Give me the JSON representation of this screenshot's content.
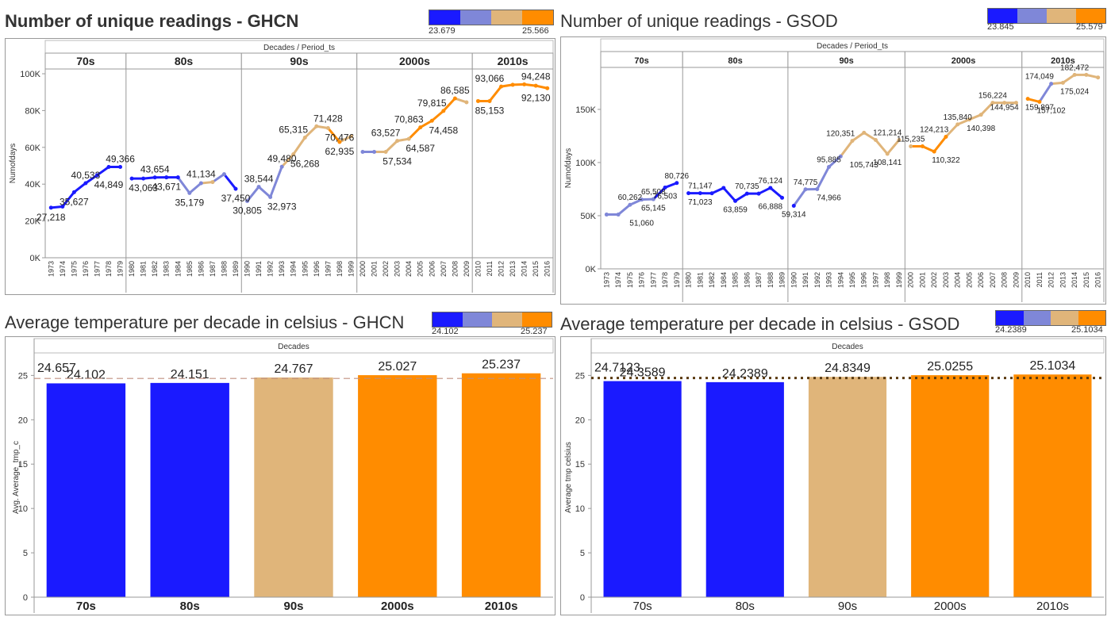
{
  "colors": {
    "blue": "#1a1aff",
    "blue_light": "#7f87d8",
    "tan": "#e0b57a",
    "orange": "#ff8c00"
  },
  "panels": {
    "ghcn_line": {
      "title": "Number of unique readings - GHCN",
      "legend_min": "23.679",
      "legend_max": "25.566",
      "header": "Decades  /  Period_ts",
      "ylabel": "Numofdays"
    },
    "gsod_line": {
      "title": "Number of unique readings - GSOD",
      "legend_min": "23.845",
      "legend_max": "25.579",
      "header": "Decades  /  Period_ts",
      "ylabel": "Numofdays"
    },
    "ghcn_bar": {
      "title": "Average temperature per decade in celsius - GHCN",
      "legend_min": "24.102",
      "legend_max": "25.237",
      "header": "Decades",
      "ylabel": "Avg. Average_tmp_c"
    },
    "gsod_bar": {
      "title": "Average temperature per decade in celsius - GSOD",
      "legend_min": "24.2389",
      "legend_max": "25.1034",
      "header": "Decades",
      "ylabel": "Average tmp celsius"
    }
  },
  "chart_data": [
    {
      "id": "ghcn_line",
      "type": "line",
      "ylim": [
        0,
        100000
      ],
      "yticks": [
        0,
        20000,
        40000,
        60000,
        80000,
        100000
      ],
      "ytick_labels": [
        "0K",
        "20K",
        "40K",
        "60K",
        "80K",
        "100K"
      ],
      "decades": [
        {
          "label": "70s",
          "years": [
            "1973",
            "1974",
            "1975",
            "1976",
            "1977",
            "1978",
            "1979"
          ],
          "values": [
            27218,
            27800,
            35627,
            40533,
            44849,
            49366,
            49366
          ],
          "colors": [
            "blue",
            "blue",
            "blue",
            "blue",
            "blue",
            "blue",
            "blue"
          ]
        },
        {
          "label": "80s",
          "years": [
            "1980",
            "1981",
            "1982",
            "1983",
            "1984",
            "1985",
            "1986",
            "1987",
            "1988",
            "1989"
          ],
          "values": [
            43063,
            43063,
            43654,
            43671,
            43671,
            35179,
            40500,
            41134,
            45400,
            37450
          ],
          "colors": [
            "blue",
            "blue",
            "blue",
            "blue",
            "blue",
            "blue_light",
            "blue_light",
            "tan",
            "blue_light",
            "blue"
          ]
        },
        {
          "label": "90s",
          "years": [
            "1990",
            "1991",
            "1992",
            "1993",
            "1994",
            "1995",
            "1996",
            "1997",
            "1998",
            "1999"
          ],
          "values": [
            30805,
            38544,
            32973,
            49480,
            56268,
            65315,
            71428,
            70476,
            62935,
            66000
          ],
          "colors": [
            "blue_light",
            "blue_light",
            "blue_light",
            "blue_light",
            "tan",
            "tan",
            "tan",
            "tan",
            "orange",
            "tan"
          ]
        },
        {
          "label": "2000s",
          "years": [
            "2000",
            "2001",
            "2002",
            "2003",
            "2004",
            "2005",
            "2006",
            "2007",
            "2008",
            "2009"
          ],
          "values": [
            57534,
            57534,
            57534,
            63527,
            64587,
            70863,
            74458,
            79815,
            86585,
            84500
          ],
          "colors": [
            "blue_light",
            "blue_light",
            "tan",
            "tan",
            "tan",
            "orange",
            "orange",
            "orange",
            "orange",
            "tan"
          ]
        },
        {
          "label": "2010s",
          "years": [
            "2010",
            "2011",
            "2012",
            "2013",
            "2014",
            "2015",
            "2016"
          ],
          "values": [
            85153,
            85153,
            93066,
            94000,
            94248,
            93500,
            92130
          ],
          "colors": [
            "orange",
            "orange",
            "orange",
            "orange",
            "orange",
            "orange",
            "orange"
          ]
        }
      ],
      "labels": [
        {
          "year": "1973",
          "text": "27,218",
          "pos": "below"
        },
        {
          "year": "1975",
          "text": "35,627",
          "pos": "below"
        },
        {
          "year": "1976",
          "text": "40,533",
          "pos": "above"
        },
        {
          "year": "1978",
          "text": "44,849",
          "pos": "below"
        },
        {
          "year": "1979",
          "text": "49,366",
          "pos": "above"
        },
        {
          "year": "1981",
          "text": "43,063",
          "pos": "below"
        },
        {
          "year": "1982",
          "text": "43,654",
          "pos": "above"
        },
        {
          "year": "1983",
          "text": "43,671",
          "pos": "below"
        },
        {
          "year": "1985",
          "text": "35,179",
          "pos": "below"
        },
        {
          "year": "1986",
          "text": "41,134",
          "pos": "above"
        },
        {
          "year": "1989",
          "text": "37,450",
          "pos": "below"
        },
        {
          "year": "1990",
          "text": "30,805",
          "pos": "below"
        },
        {
          "year": "1991",
          "text": "38,544",
          "pos": "above"
        },
        {
          "year": "1993",
          "text": "32,973",
          "pos": "below"
        },
        {
          "year": "1993",
          "text": "49,480",
          "pos": "above"
        },
        {
          "year": "1994",
          "text": "65,315",
          "pos": "above"
        },
        {
          "year": "1995",
          "text": "56,268",
          "pos": "below"
        },
        {
          "year": "1997",
          "text": "71,428",
          "pos": "above"
        },
        {
          "year": "1998",
          "text": "70,476",
          "pos": "below"
        },
        {
          "year": "1998",
          "text": "62,935",
          "pos": "below"
        },
        {
          "year": "2002",
          "text": "63,527",
          "pos": "above"
        },
        {
          "year": "2003",
          "text": "57,534",
          "pos": "below"
        },
        {
          "year": "2004",
          "text": "70,863",
          "pos": "above"
        },
        {
          "year": "2005",
          "text": "64,587",
          "pos": "below"
        },
        {
          "year": "2006",
          "text": "79,815",
          "pos": "above"
        },
        {
          "year": "2007",
          "text": "74,458",
          "pos": "below"
        },
        {
          "year": "2008",
          "text": "86,585",
          "pos": "above"
        },
        {
          "year": "2011",
          "text": "93,066",
          "pos": "above"
        },
        {
          "year": "2011",
          "text": "85,153",
          "pos": "below"
        },
        {
          "year": "2015",
          "text": "94,248",
          "pos": "above"
        },
        {
          "year": "2015",
          "text": "92,130",
          "pos": "below"
        }
      ]
    },
    {
      "id": "gsod_line",
      "type": "line",
      "ylim": [
        0,
        185000
      ],
      "yticks": [
        0,
        50000,
        100000,
        150000
      ],
      "ytick_labels": [
        "0K",
        "50K",
        "100K",
        "150K"
      ],
      "decades": [
        {
          "label": "70s",
          "years": [
            "1973",
            "1974",
            "1975",
            "1976",
            "1977",
            "1978",
            "1979"
          ],
          "values": [
            51060,
            51060,
            60262,
            65145,
            65508,
            76503,
            80726
          ],
          "colors": [
            "blue_light",
            "blue_light",
            "blue_light",
            "blue_light",
            "blue_light",
            "blue",
            "blue"
          ]
        },
        {
          "label": "80s",
          "years": [
            "1980",
            "1981",
            "1982",
            "1984",
            "1985",
            "1986",
            "1987",
            "1988",
            "1989"
          ],
          "values": [
            71147,
            71147,
            71023,
            76124,
            63859,
            70735,
            70735,
            76124,
            66888
          ],
          "colors": [
            "blue",
            "blue",
            "blue",
            "blue",
            "blue",
            "blue",
            "blue",
            "blue",
            "blue"
          ]
        },
        {
          "label": "90s",
          "years": [
            "1990",
            "1991",
            "1992",
            "1993",
            "1994",
            "1995",
            "1996",
            "1997",
            "1998",
            "1999"
          ],
          "values": [
            59314,
            74775,
            74966,
            95885,
            105743,
            120351,
            128000,
            121214,
            108141,
            121214
          ],
          "colors": [
            "blue",
            "blue_light",
            "blue_light",
            "blue_light",
            "blue_light",
            "tan",
            "tan",
            "tan",
            "tan",
            "tan"
          ]
        },
        {
          "label": "2000s",
          "years": [
            "2000",
            "2001",
            "2002",
            "2003",
            "2004",
            "2005",
            "2006",
            "2007",
            "2008",
            "2009"
          ],
          "values": [
            115235,
            115235,
            110322,
            124213,
            135840,
            140398,
            144954,
            156224,
            156224,
            156224
          ],
          "colors": [
            "tan",
            "orange",
            "orange",
            "orange",
            "tan",
            "tan",
            "tan",
            "tan",
            "tan",
            "tan"
          ]
        },
        {
          "label": "2010s",
          "years": [
            "2010",
            "2011",
            "2012",
            "2013",
            "2014",
            "2015",
            "2016"
          ],
          "values": [
            159897,
            157102,
            174049,
            175024,
            182472,
            182472,
            180000
          ],
          "colors": [
            "orange",
            "orange",
            "blue_light",
            "tan",
            "tan",
            "tan",
            "tan"
          ]
        }
      ],
      "labels": [
        {
          "year": "1975",
          "text": "60,262",
          "pos": "above"
        },
        {
          "year": "1976",
          "text": "51,060",
          "pos": "below"
        },
        {
          "year": "1977",
          "text": "65,508",
          "pos": "above"
        },
        {
          "year": "1977",
          "text": "65,145",
          "pos": "below"
        },
        {
          "year": "1978",
          "text": "76,503",
          "pos": "below"
        },
        {
          "year": "1979",
          "text": "80,726",
          "pos": "above"
        },
        {
          "year": "1981",
          "text": "71,147",
          "pos": "above"
        },
        {
          "year": "1981",
          "text": "71,023",
          "pos": "below"
        },
        {
          "year": "1985",
          "text": "63,859",
          "pos": "below"
        },
        {
          "year": "1986",
          "text": "70,735",
          "pos": "above"
        },
        {
          "year": "1988",
          "text": "76,124",
          "pos": "above"
        },
        {
          "year": "1988",
          "text": "66,888",
          "pos": "below"
        },
        {
          "year": "1990",
          "text": "59,314",
          "pos": "below"
        },
        {
          "year": "1991",
          "text": "74,775",
          "pos": "above"
        },
        {
          "year": "1993",
          "text": "74,966",
          "pos": "below"
        },
        {
          "year": "1993",
          "text": "95,885",
          "pos": "above"
        },
        {
          "year": "1994",
          "text": "120,351",
          "pos": "above"
        },
        {
          "year": "1996",
          "text": "105,743",
          "pos": "below"
        },
        {
          "year": "1998",
          "text": "121,214",
          "pos": "above"
        },
        {
          "year": "1998",
          "text": "108,141",
          "pos": "below"
        },
        {
          "year": "2000",
          "text": "115,235",
          "pos": "above"
        },
        {
          "year": "2002",
          "text": "124,213",
          "pos": "above"
        },
        {
          "year": "2003",
          "text": "110,322",
          "pos": "below"
        },
        {
          "year": "2004",
          "text": "135,840",
          "pos": "above"
        },
        {
          "year": "2006",
          "text": "140,398",
          "pos": "below"
        },
        {
          "year": "2007",
          "text": "156,224",
          "pos": "above"
        },
        {
          "year": "2008",
          "text": "144,954",
          "pos": "above"
        },
        {
          "year": "2011",
          "text": "174,049",
          "pos": "above"
        },
        {
          "year": "2011",
          "text": "159,897",
          "pos": "below"
        },
        {
          "year": "2012",
          "text": "157,102",
          "pos": "below"
        },
        {
          "year": "2014",
          "text": "182,472",
          "pos": "above"
        },
        {
          "year": "2014",
          "text": "175,024",
          "pos": "below"
        }
      ]
    },
    {
      "id": "ghcn_bar",
      "type": "bar",
      "categories": [
        "70s",
        "80s",
        "90s",
        "2000s",
        "2010s"
      ],
      "values": [
        24.102,
        24.151,
        24.767,
        25.027,
        25.237
      ],
      "value_labels": [
        "24.102",
        "24.151",
        "24.767",
        "25.027",
        "25.237"
      ],
      "colors": [
        "blue",
        "blue",
        "tan",
        "orange",
        "orange"
      ],
      "reference_line": {
        "value": 24.657,
        "label": "24.657",
        "style": "dashed"
      },
      "ylim": [
        0,
        27
      ],
      "yticks": [
        0,
        5,
        10,
        15,
        20,
        25
      ],
      "ytick_labels": [
        "0",
        "5",
        "10",
        "15",
        "20",
        "25"
      ]
    },
    {
      "id": "gsod_bar",
      "type": "bar",
      "categories": [
        "70s",
        "80s",
        "90s",
        "2000s",
        "2010s"
      ],
      "values": [
        24.3589,
        24.2389,
        24.8349,
        25.0255,
        25.1034
      ],
      "value_labels": [
        "24.3589",
        "24.2389",
        "24.8349",
        "25.0255",
        "25.1034"
      ],
      "colors": [
        "blue",
        "blue",
        "tan",
        "orange",
        "orange"
      ],
      "reference_line": {
        "value": 24.7123,
        "label": "24.7123",
        "style": "dotted"
      },
      "ylim": [
        0,
        27
      ],
      "yticks": [
        0,
        5,
        10,
        15,
        20,
        25
      ],
      "ytick_labels": [
        "0",
        "5",
        "10",
        "15",
        "20",
        "25"
      ]
    }
  ]
}
